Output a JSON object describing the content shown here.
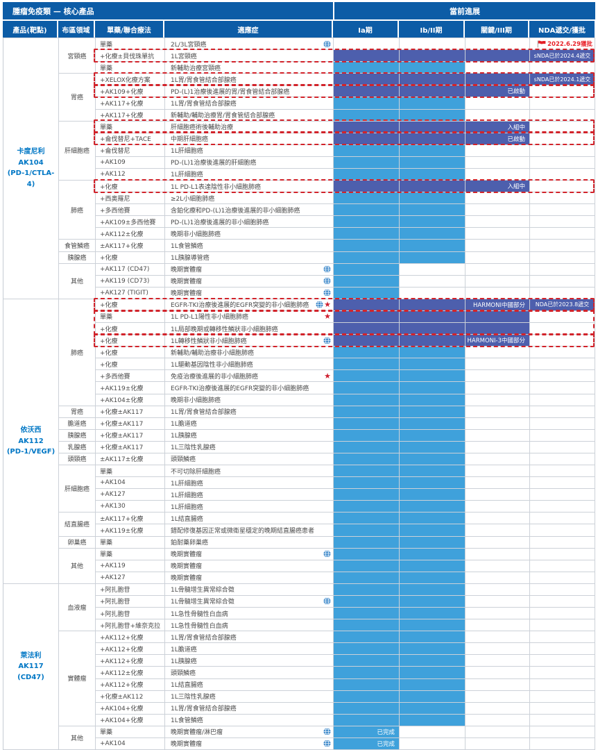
{
  "chart_data": {
    "type": "table",
    "title": "腫瘤免疫類 — 核心產品",
    "progress_title": "當前進展",
    "columns": [
      "產品(靶點)",
      "布區領域",
      "單藥/聯合療法",
      "適應症"
    ],
    "phase_columns": [
      "Ia期",
      "Ib/II期",
      "關鍵/III期",
      "NDA遞交/獲批"
    ],
    "stage_legend": {
      "none": "未顯示進度條",
      "ia": "進展至Ia期",
      "ib2": "進展至Ib/II期",
      "ph3": "進展至關鍵/III期"
    },
    "colors": {
      "header_bg": "#0c5ca6",
      "bar_phase3": "#4d5fad",
      "bar_early": "#3fa1db",
      "dashed_border": "#d2232a",
      "flag_red": "#e8232b",
      "product_text": "#0077c5",
      "grid_line": "#ccd1d8"
    },
    "sections": [
      {
        "product": {
          "name": "卡度尼利",
          "code": "AK104",
          "target": "(PD-1/CTLA-4)"
        },
        "areas": [
          {
            "name": "宮頸癌",
            "rows": [
              {
                "therapy": "單藥",
                "indication": "2L/3L宮頸癌",
                "icons": [
                  "globe"
                ],
                "stage": "none",
                "nda": {
                  "type": "flag",
                  "text": "2022.6.29獲批"
                }
              },
              {
                "therapy": "+化療±貝伐珠單抗",
                "indication": "1L宮頸癌",
                "icons": [],
                "stage": "ph3",
                "nda": {
                  "type": "bar",
                  "text": "sNDA已於2024.4遞交"
                },
                "dash": "g1"
              },
              {
                "therapy": "單藥",
                "indication": "新輔助治療宮頸癌",
                "icons": [],
                "stage": "ib2"
              }
            ]
          },
          {
            "name": "胃癌",
            "rows": [
              {
                "therapy": "+XELOX化療方案",
                "indication": "1L胃/胃食管結合部腺癌",
                "icons": [],
                "stage": "ph3",
                "nda": {
                  "type": "bar",
                  "text": "sNDA已於2024.1遞交"
                },
                "dash": "g2"
              },
              {
                "therapy": "+AK109+化療",
                "indication": "PD-(L)1治療後進展的胃/胃食管結合部腺癌",
                "icons": [],
                "stage": "ph3",
                "bar_label": "已啟動",
                "dash": "g3"
              },
              {
                "therapy": "+AK117+化療",
                "indication": "1L胃/胃食管結合部腺癌",
                "icons": [],
                "stage": "ib2"
              },
              {
                "therapy": "+AK117+化療",
                "indication": "新輔助/輔助治療胃/胃食管結合部腺癌",
                "icons": [],
                "stage": "ib2"
              }
            ]
          },
          {
            "name": "肝細胞癌",
            "rows": [
              {
                "therapy": "單藥",
                "indication": "肝細胞癌術後輔助治療",
                "icons": [],
                "stage": "ph3",
                "bar_label": "入組中",
                "dash": "g4"
              },
              {
                "therapy": "+侖伐替尼+TACE",
                "indication": "中期肝細胞癌",
                "icons": [],
                "stage": "ph3",
                "bar_label": "已啟動",
                "dash": "g5"
              },
              {
                "therapy": "+侖伐替尼",
                "indication": "1L肝細胞癌",
                "icons": [],
                "stage": "ib2"
              },
              {
                "therapy": "+AK109",
                "indication": "PD-(L)1治療後進展的肝細胞癌",
                "icons": [],
                "stage": "ib2"
              },
              {
                "therapy": "+AK112",
                "indication": "1L肝細胞癌",
                "icons": [],
                "stage": "ib2"
              }
            ]
          },
          {
            "name": "肺癌",
            "rows": [
              {
                "therapy": "+化療",
                "indication": "1L PD-L1表達陰性非小細胞肺癌",
                "icons": [],
                "stage": "ph3",
                "bar_label": "入組中",
                "dash": "g6"
              },
              {
                "therapy": "+西奧羅尼",
                "indication": "≥2L小細胞肺癌",
                "icons": [],
                "stage": "ib2"
              },
              {
                "therapy": "+多西他賽",
                "indication": "含鉑化療和PD-(L)1治療後進展的非小細胞肺癌",
                "icons": [],
                "stage": "ib2"
              },
              {
                "therapy": "+AK109±多西他賽",
                "indication": "PD-(L)1治療後進展的非小細胞肺癌",
                "icons": [],
                "stage": "ib2"
              },
              {
                "therapy": "+AK112±化療",
                "indication": "晚期非小細胞肺癌",
                "icons": [],
                "stage": "ib2"
              }
            ]
          },
          {
            "name": "食管鱗癌",
            "rows": [
              {
                "therapy": "±AK117+化療",
                "indication": "1L食管鱗癌",
                "icons": [],
                "stage": "ib2"
              }
            ]
          },
          {
            "name": "胰腺癌",
            "rows": [
              {
                "therapy": "+化療",
                "indication": "1L胰腺導管癌",
                "icons": [],
                "stage": "ib2"
              }
            ]
          },
          {
            "name": "其他",
            "rows": [
              {
                "therapy": "+AK117 (CD47)",
                "indication": "晚期實體瘤",
                "icons": [
                  "globe"
                ],
                "stage": "ia"
              },
              {
                "therapy": "+AK119 (CD73)",
                "indication": "晚期實體瘤",
                "icons": [
                  "globe"
                ],
                "stage": "ia"
              },
              {
                "therapy": "+AK127 (TIGIT)",
                "indication": "晚期實體瘤",
                "icons": [
                  "globe"
                ],
                "stage": "ia"
              }
            ]
          }
        ]
      },
      {
        "product": {
          "name": "依沃西",
          "code": "AK112",
          "target": "(PD-1/VEGF)"
        },
        "areas": [
          {
            "name": "肺癌",
            "rows": [
              {
                "therapy": "+化療",
                "indication": "EGFR-TKI治療後進展的EGFR突變的非小細胞肺癌",
                "icons": [
                  "globe",
                  "star"
                ],
                "stage": "ph3",
                "bar_label": "HARMONI中國部分",
                "nda": {
                  "type": "bar",
                  "text": "NDA已於2023.8遞交"
                },
                "dash": "g7"
              },
              {
                "therapy": "單藥",
                "indication": "1L PD-L1陽性非小細胞肺癌",
                "icons": [
                  "star"
                ],
                "stage": "ph3",
                "dash": "g8"
              },
              {
                "therapy": "+化療",
                "indication": "1L局部晚期或轉移性鱗狀非小細胞肺癌",
                "icons": [],
                "stage": "ph3",
                "dash": "g8"
              },
              {
                "therapy": "+化療",
                "indication": "1L轉移性鱗狀非小細胞肺癌",
                "icons": [
                  "globe"
                ],
                "stage": "ph3",
                "bar_label": "HARMONI-3中國部分",
                "dash": "g9"
              },
              {
                "therapy": "+化療",
                "indication": "新輔助/輔助治療非小細胞肺癌",
                "icons": [],
                "stage": "ib2"
              },
              {
                "therapy": "+化療",
                "indication": "1L驅動基因陰性非小細胞肺癌",
                "icons": [],
                "stage": "ib2"
              },
              {
                "therapy": "+多西他賽",
                "indication": "免疫治療後進展的非小細胞肺癌",
                "icons": [
                  "star"
                ],
                "stage": "ib2"
              },
              {
                "therapy": "+AK119±化療",
                "indication": "EGFR-TKI治療後進展的EGFR突變的非小細胞肺癌",
                "icons": [],
                "stage": "ib2"
              },
              {
                "therapy": "+AK104±化療",
                "indication": "晚期非小細胞肺癌",
                "icons": [],
                "stage": "ib2"
              }
            ]
          },
          {
            "name": "胃癌",
            "rows": [
              {
                "therapy": "+化療±AK117",
                "indication": "1L胃/胃食管結合部腺癌",
                "icons": [],
                "stage": "ib2"
              }
            ]
          },
          {
            "name": "膽道癌",
            "rows": [
              {
                "therapy": "+化療±AK117",
                "indication": "1L膽道癌",
                "icons": [],
                "stage": "ib2"
              }
            ]
          },
          {
            "name": "胰腺癌",
            "rows": [
              {
                "therapy": "+化療±AK117",
                "indication": "1L胰腺癌",
                "icons": [],
                "stage": "ib2"
              }
            ]
          },
          {
            "name": "乳腺癌",
            "rows": [
              {
                "therapy": "+化療±AK117",
                "indication": "1L三陰性乳腺癌",
                "icons": [],
                "stage": "ib2"
              }
            ]
          },
          {
            "name": "頭頸癌",
            "rows": [
              {
                "therapy": "±AK117±化療",
                "indication": "頭頸鱗癌",
                "icons": [],
                "stage": "ib2"
              }
            ]
          },
          {
            "name": "肝細胞癌",
            "rows": [
              {
                "therapy": "單藥",
                "indication": "不可切除肝細胞癌",
                "icons": [],
                "stage": "ib2"
              },
              {
                "therapy": "+AK104",
                "indication": "1L肝細胞癌",
                "icons": [],
                "stage": "ib2"
              },
              {
                "therapy": "+AK127",
                "indication": "1L肝細胞癌",
                "icons": [],
                "stage": "ib2"
              },
              {
                "therapy": "+AK130",
                "indication": "1L肝細胞癌",
                "icons": [],
                "stage": "ib2"
              }
            ]
          },
          {
            "name": "結直腸癌",
            "rows": [
              {
                "therapy": "±AK117+化療",
                "indication": "1L結直腸癌",
                "icons": [],
                "stage": "ib2"
              },
              {
                "therapy": "+AK119±化療",
                "indication": "錯配修復基因正常或微衛星穩定的晚期結直腸癌患者",
                "icons": [],
                "stage": "ib2"
              }
            ]
          },
          {
            "name": "卵巢癌",
            "rows": [
              {
                "therapy": "單藥",
                "indication": "鉑耐藥卵巢癌",
                "icons": [],
                "stage": "ib2"
              }
            ]
          },
          {
            "name": "其他",
            "rows": [
              {
                "therapy": "單藥",
                "indication": "晚期實體瘤",
                "icons": [
                  "globe"
                ],
                "stage": "ib2"
              },
              {
                "therapy": "+AK119",
                "indication": "晚期實體瘤",
                "icons": [],
                "stage": "ib2"
              },
              {
                "therapy": "+AK127",
                "indication": "晚期實體瘤",
                "icons": [],
                "stage": "ib2"
              }
            ]
          }
        ]
      },
      {
        "product": {
          "name": "萊法利",
          "code": "AK117",
          "target": "(CD47)"
        },
        "areas": [
          {
            "name": "血液瘤",
            "rows": [
              {
                "therapy": "+阿扎胞苷",
                "indication": "1L骨髓增生異常綜合徵",
                "icons": [],
                "stage": "ib2"
              },
              {
                "therapy": "+阿扎胞苷",
                "indication": "1L骨髓增生異常綜合徵",
                "icons": [
                  "globe"
                ],
                "stage": "ib2"
              },
              {
                "therapy": "+阿扎胞苷",
                "indication": "1L急性骨髓性白血病",
                "icons": [],
                "stage": "ib2"
              },
              {
                "therapy": "+阿扎胞苷+維奈克拉",
                "indication": "1L急性骨髓性白血病",
                "icons": [],
                "stage": "ib2"
              }
            ]
          },
          {
            "name": "實體瘤",
            "rows": [
              {
                "therapy": "+AK112+化療",
                "indication": "1L胃/胃食管結合部腺癌",
                "icons": [],
                "stage": "ib2"
              },
              {
                "therapy": "+AK112+化療",
                "indication": "1L膽道癌",
                "icons": [],
                "stage": "ib2"
              },
              {
                "therapy": "+AK112+化療",
                "indication": "1L胰腺癌",
                "icons": [],
                "stage": "ib2"
              },
              {
                "therapy": "+AK112±化療",
                "indication": "頭頸鱗癌",
                "icons": [],
                "stage": "ib2"
              },
              {
                "therapy": "+AK112+化療",
                "indication": "1L結直腸癌",
                "icons": [],
                "stage": "ib2"
              },
              {
                "therapy": "+化療±AK112",
                "indication": "1L三陰性乳腺癌",
                "icons": [],
                "stage": "ib2"
              },
              {
                "therapy": "+AK104+化療",
                "indication": "1L胃/胃食管結合部腺癌",
                "icons": [],
                "stage": "ib2"
              },
              {
                "therapy": "+AK104+化療",
                "indication": "1L食管鱗癌",
                "icons": [],
                "stage": "ib2"
              }
            ]
          },
          {
            "name": "其他",
            "rows": [
              {
                "therapy": "單藥",
                "indication": "晚期實體瘤/淋巴瘤",
                "icons": [
                  "globe"
                ],
                "stage": "ia",
                "bar_label": "已完成"
              },
              {
                "therapy": "+AK104",
                "indication": "晚期實體瘤",
                "icons": [
                  "globe"
                ],
                "stage": "ia",
                "bar_label": "已完成"
              }
            ]
          }
        ]
      }
    ]
  }
}
